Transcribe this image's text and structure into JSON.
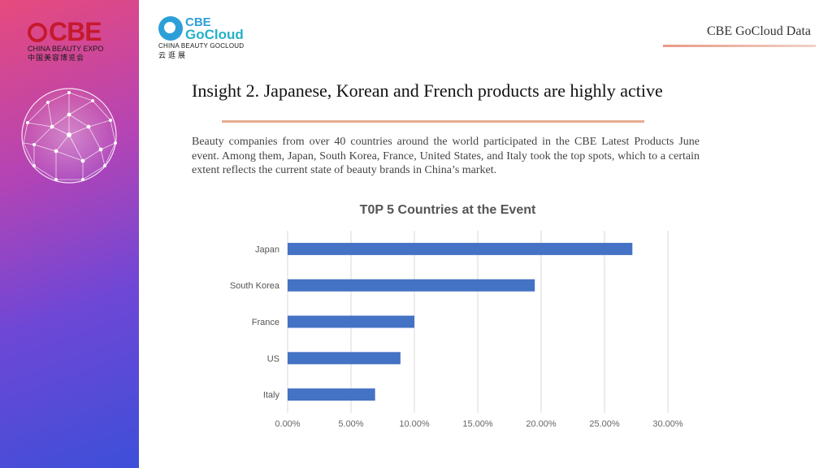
{
  "header": {
    "cbe_logo": {
      "mark": "CBE",
      "subtitle": "CHINA BEAUTY EXPO",
      "cn": "中国美容博览会"
    },
    "gocloud_logo": {
      "line1": "CBE",
      "line2": "GoCloud",
      "subtitle": "CHINA BEAUTY GOCLOUD",
      "cn": "云逛展"
    },
    "right_label": "CBE GoCloud Data"
  },
  "slide": {
    "title": "Insight 2. Japanese, Korean and French products are highly active",
    "body": "Beauty companies from over 40 countries around the world participated in the CBE Latest Products June event. Among them, Japan, South Korea, France, United States, and Italy took the top spots, which to a certain extent reflects the current state of beauty brands in China’s market."
  },
  "colors": {
    "bar": "#4472c4",
    "grid": "#d9d9d9",
    "accent": "#e8ad8f",
    "cbe_red": "#c5192d",
    "gocloud_blue": "#2d9fd8"
  },
  "chart_data": {
    "type": "bar",
    "orientation": "horizontal",
    "title": "T0P 5 Countries at the Event",
    "categories": [
      "Japan",
      "South Korea",
      "France",
      "US",
      "Italy"
    ],
    "values": [
      0.272,
      0.195,
      0.1,
      0.089,
      0.069
    ],
    "xlim": [
      0,
      0.3
    ],
    "xticks": [
      "0.00%",
      "5.00%",
      "10.00%",
      "15.00%",
      "20.00%",
      "25.00%",
      "30.00%"
    ],
    "xlabel": "",
    "ylabel": "",
    "grid": true,
    "legend": "none"
  }
}
